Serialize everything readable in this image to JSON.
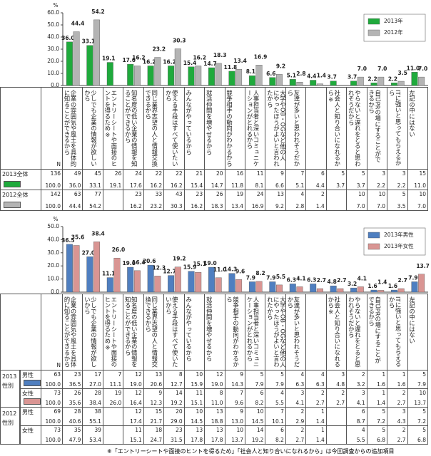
{
  "chart_data": [
    {
      "type": "bar",
      "unit": "%",
      "ylim": [
        0,
        60
      ],
      "yticks": [
        {
          "value": 0,
          "label": "0.0"
        },
        {
          "value": 10,
          "label": "10.0"
        },
        {
          "value": 20,
          "label": "20.0"
        },
        {
          "value": 30,
          "label": "30.0"
        },
        {
          "value": 40,
          "label": "40.0"
        },
        {
          "value": 50,
          "label": "50.0"
        },
        {
          "value": 60,
          "label": "60.0"
        }
      ],
      "legend": "upper right",
      "categories": [
        "企業の雰囲気や風土を具体的に知ることができるから",
        "少しでも企業の情報が欲しいから",
        "エントリーシートや面接のヒントを得るため※",
        "知名度の低い企業の情報を知ることができるから",
        "同じ業界志望の人と情報交換できるから",
        "使える手段はすべて使いたいから",
        "みんながやっているから",
        "就活仲間を増やせるから",
        "競争相手の動向がわかるから",
        "人事担当者と深いコミュニケーションがとれるから",
        "大学やOB・OGなど他の人にやったほうがよいと言われたから",
        "友達が多いと思われそうだから",
        null,
        "社会人と知り合いになれるから※",
        "やらないと遅れをとると思われそうだから",
        "自己PRの場にすることができるから",
        "ITに強いと思ってもらえるから",
        "左記の中にはない"
      ],
      "series": [
        {
          "name": "2013年",
          "color": "#1faa3c",
          "values": [
            36.0,
            33.1,
            19.1,
            17.6,
            16.2,
            16.2,
            15.4,
            14.7,
            11.8,
            8.1,
            6.6,
            5.1,
            4.4,
            3.7,
            3.7,
            2.2,
            2.2,
            11.0
          ],
          "value_labels": [
            "36.0",
            "33.1",
            "19.1",
            "17.6",
            "16.2",
            "16.2",
            "15.4",
            "14.7",
            "11.8",
            "8.1",
            "6.6",
            "5.1",
            "4.4",
            "3.7",
            "3.7",
            "2.2",
            "2.2",
            "11.0"
          ]
        },
        {
          "name": "2012年",
          "color": "#b4b4b4",
          "values": [
            44.4,
            54.2,
            null,
            16.2,
            23.2,
            30.3,
            16.2,
            18.3,
            13.4,
            16.9,
            9.2,
            2.8,
            1.4,
            null,
            7.0,
            7.0,
            3.5,
            7.0
          ],
          "value_labels": [
            "44.4",
            "54.2",
            null,
            "16.2",
            "23.2",
            "30.3",
            "16.2",
            "18.3",
            "13.4",
            "16.9",
            "9.2",
            "2.8",
            "1.4",
            null,
            "7.0",
            "7.0",
            "3.5",
            "7.0"
          ]
        }
      ]
    },
    {
      "type": "bar",
      "unit": "%",
      "ylim": [
        0,
        50
      ],
      "yticks": [
        {
          "value": 0,
          "label": "0.0"
        },
        {
          "value": 10,
          "label": "10.0"
        },
        {
          "value": 20,
          "label": "20.0"
        },
        {
          "value": 30,
          "label": "30.0"
        },
        {
          "value": 40,
          "label": "40.0"
        },
        {
          "value": 50,
          "label": "50.0"
        }
      ],
      "legend": "upper right",
      "categories": [
        "企業の雰囲気や風土を具体的に知ることができるから",
        "少しでも企業の情報が欲しいから",
        "エントリーシートや面接のヒントを得るため※",
        "知名度の低い企業の情報を知ることができるから",
        "同じ業界志望の人と情報交換できるから",
        "使える手段はすべて使いたいから",
        "みんながやっているから",
        "就活仲間を増やせるから",
        "競争相手の動向がわかるから",
        "人事担当者と深いコミュニケーションがとれるから",
        "大学やOB・OGなど他の人にやったほうがよいと言われたから",
        "友達が多いと思われそうだから",
        null,
        "社会人と知り合いになれるから※",
        "やらないと遅れをとると思われそうだから",
        "自己PRの場にすることができるから",
        "ITに強いと思ってもらえるから",
        "左記の中にはない"
      ],
      "series": [
        {
          "name": "2013年男性",
          "color": "#4f7fc0",
          "values": [
            36.5,
            27.0,
            11.1,
            19.0,
            20.6,
            12.7,
            15.9,
            19.0,
            14.3,
            7.9,
            7.9,
            6.3,
            6.3,
            4.8,
            3.2,
            1.6,
            1.6,
            7.9
          ],
          "value_labels": [
            "36.5",
            "27.0",
            "11.1",
            "19.0",
            "20.6",
            "12.7",
            "15.9",
            "19.0",
            "14.3",
            "7.9",
            "7.9",
            "6.3",
            "6.3",
            "4.8",
            "3.2",
            "1.6",
            "1.6",
            "7.9"
          ]
        },
        {
          "name": "2013年女性",
          "color": "#d99593",
          "values": [
            35.6,
            38.4,
            26.0,
            16.4,
            12.3,
            19.2,
            15.1,
            11.0,
            9.6,
            8.2,
            5.5,
            4.1,
            2.7,
            2.7,
            4.1,
            1.4,
            2.7,
            13.7
          ],
          "value_labels": [
            "35.6",
            "38.4",
            "26.0",
            "16.4",
            "12.3",
            "19.2",
            "15.1",
            "11.0",
            "9.6",
            "8.2",
            "5.5",
            "4.1",
            "2.7",
            "2.7",
            "4.1",
            "1.4",
            "2.7",
            "13.7"
          ]
        }
      ]
    }
  ],
  "tables": [
    {
      "n_header": "N",
      "rows": [
        {
          "label": "2013全体",
          "swatch": "#1faa3c",
          "n": 136,
          "n_pct": "100.0",
          "counts": [
            49,
            45,
            26,
            24,
            22,
            22,
            21,
            20,
            16,
            11,
            9,
            7,
            6,
            5,
            5,
            3,
            3,
            15
          ],
          "pcts": [
            "36.0",
            "33.1",
            "19.1",
            "17.6",
            "16.2",
            "16.2",
            "15.4",
            "14.7",
            "11.8",
            "8.1",
            "6.6",
            "5.1",
            "4.4",
            "3.7",
            "3.7",
            "2.2",
            "2.2",
            "11.0"
          ]
        },
        {
          "label": "2012全体",
          "swatch": "#b4b4b4",
          "n": 142,
          "n_pct": "100.0",
          "counts": [
            63,
            77,
            null,
            23,
            33,
            43,
            23,
            26,
            19,
            24,
            13,
            4,
            2,
            null,
            10,
            10,
            5,
            10
          ],
          "pcts": [
            "44.4",
            "54.2",
            null,
            "16.2",
            "23.2",
            "30.3",
            "16.2",
            "18.3",
            "13.4",
            "16.9",
            "9.2",
            "2.8",
            "1.4",
            null,
            "7.0",
            "7.0",
            "3.5",
            "7.0"
          ]
        }
      ]
    },
    {
      "n_header": "N",
      "groups": [
        {
          "year": "2013",
          "label": "性別"
        },
        {
          "year": "2012",
          "label": "性別"
        }
      ],
      "rows": [
        {
          "group": 0,
          "label": "男性",
          "swatch": "#4f7fc0",
          "n": 63,
          "n_pct": "100.0",
          "counts": [
            23,
            17,
            7,
            12,
            13,
            8,
            10,
            12,
            9,
            5,
            5,
            4,
            4,
            3,
            2,
            1,
            1,
            5
          ],
          "pcts": [
            "36.5",
            "27.0",
            "11.1",
            "19.0",
            "20.6",
            "12.7",
            "15.9",
            "19.0",
            "14.3",
            "7.9",
            "7.9",
            "6.3",
            "6.3",
            "4.8",
            "3.2",
            "1.6",
            "1.6",
            "7.9"
          ]
        },
        {
          "group": 0,
          "label": "女性",
          "swatch": "#d99593",
          "n": 73,
          "n_pct": "100.0",
          "counts": [
            26,
            28,
            19,
            12,
            9,
            14,
            11,
            8,
            7,
            6,
            4,
            3,
            2,
            2,
            3,
            1,
            2,
            10
          ],
          "pcts": [
            "35.6",
            "38.4",
            "26.0",
            "16.4",
            "12.3",
            "19.2",
            "15.1",
            "11.0",
            "9.6",
            "8.2",
            "5.5",
            "4.1",
            "2.7",
            "2.7",
            "4.1",
            "1.4",
            "2.7",
            "13.7"
          ]
        },
        {
          "group": 1,
          "label": "男性",
          "n": 69,
          "n_pct": "100.0",
          "counts": [
            28,
            38,
            null,
            12,
            15,
            20,
            10,
            13,
            9,
            10,
            7,
            2,
            1,
            null,
            6,
            5,
            3,
            5
          ],
          "pcts": [
            "40.6",
            "55.1",
            null,
            "17.4",
            "21.7",
            "29.0",
            "14.5",
            "18.8",
            "13.0",
            "14.5",
            "10.1",
            "2.9",
            "1.4",
            null,
            "8.7",
            "7.2",
            "4.3",
            "7.2"
          ]
        },
        {
          "group": 1,
          "label": "女性",
          "n": 73,
          "n_pct": "100.0",
          "counts": [
            35,
            39,
            null,
            11,
            18,
            23,
            13,
            13,
            10,
            14,
            6,
            2,
            1,
            null,
            4,
            5,
            2,
            5
          ],
          "pcts": [
            "47.9",
            "53.4",
            null,
            "15.1",
            "24.7",
            "31.5",
            "17.8",
            "17.8",
            "13.7",
            "19.2",
            "8.2",
            "2.7",
            "1.4",
            null,
            "5.5",
            "6.8",
            "2.7",
            "6.8"
          ]
        }
      ]
    }
  ],
  "footnote": "※「エントリーシートや面接のヒントを得るため」「社会人と知り合いになれるから」は今回調査からの追加項目"
}
